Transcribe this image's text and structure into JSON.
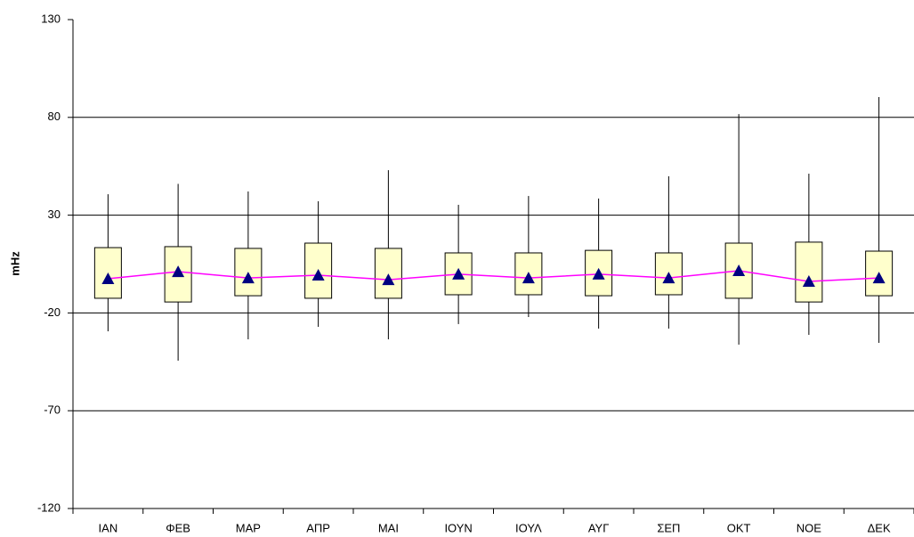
{
  "chart_data": {
    "type": "box",
    "y_label": "mHz",
    "categories": [
      "ΙΑΝ",
      "ΦΕΒ",
      "ΜΑΡ",
      "ΑΠΡ",
      "ΜΑΙ",
      "ΙΟΥΝ",
      "ΙΟΥΛ",
      "ΑΥΓ",
      "ΣΕΠ",
      "ΟΚΤ",
      "ΝΟΕ",
      "ΔΕΚ"
    ],
    "high": [
      40.7,
      46,
      42.1,
      37.1,
      53,
      35.3,
      39.8,
      38.5,
      49.9,
      81.7,
      51.2,
      90.4
    ],
    "q3": [
      13.4,
      13.9,
      13,
      15.7,
      13,
      10.7,
      10.7,
      12,
      10.7,
      15.7,
      16.2,
      11.6
    ],
    "q1": [
      -12.5,
      -14.4,
      -11.2,
      -12.5,
      -12.5,
      -10.7,
      -10.7,
      -11.2,
      -10.7,
      -12.5,
      -14.4,
      -11.2
    ],
    "low": [
      -29.4,
      -44.4,
      -33.5,
      -27.1,
      -33.5,
      -25.7,
      -22.1,
      -28,
      -28,
      -36.2,
      -31.2,
      -35.3
    ],
    "mean": [
      -2.5,
      1.1,
      -2.1,
      -0.7,
      -3,
      -0.2,
      -2.1,
      -0.2,
      -2.1,
      1.6,
      -3.9,
      -2.1
    ],
    "box_color": "#ffffcc",
    "mean_color": "#000080",
    "line_color": "#ff00ff",
    "ylim": [
      -120,
      130
    ],
    "yticks": [
      -120,
      -70,
      -20,
      30,
      80,
      130
    ],
    "grid": true
  }
}
